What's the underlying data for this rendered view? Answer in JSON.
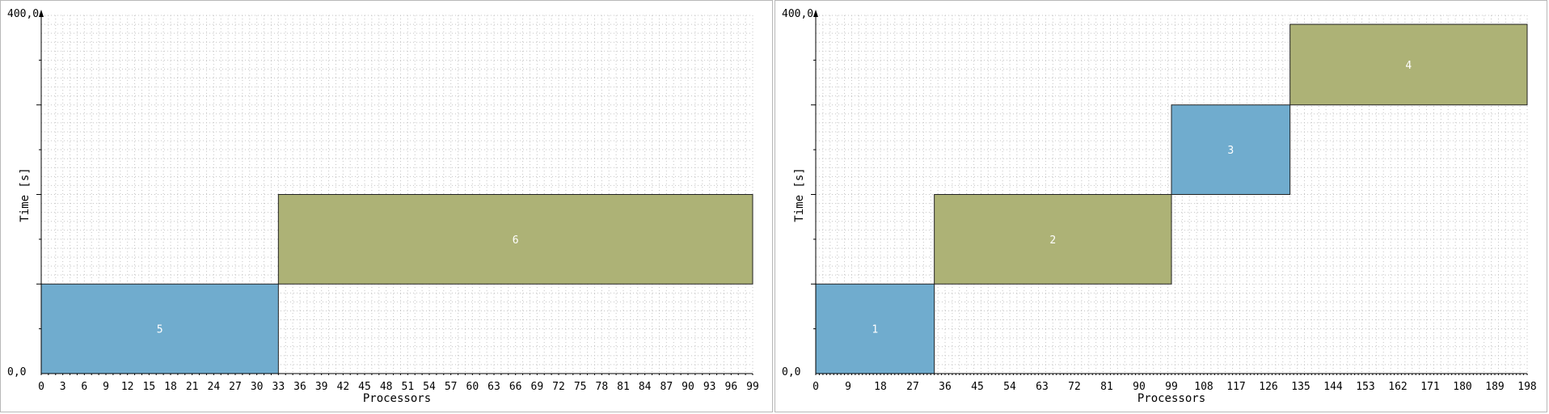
{
  "chart_data": [
    {
      "type": "gantt",
      "xlabel": "Processors",
      "ylabel": "Time [s]",
      "ymax_label": "400,0",
      "ymin_label": "0,0",
      "ylim": [
        0,
        400
      ],
      "xlim": [
        0,
        99
      ],
      "x_ticks": [
        "0",
        "3",
        "6",
        "9",
        "12",
        "15",
        "18",
        "21",
        "24",
        "27",
        "30",
        "33",
        "36",
        "39",
        "42",
        "45",
        "48",
        "51",
        "54",
        "57",
        "60",
        "63",
        "66",
        "69",
        "72",
        "75",
        "78",
        "81",
        "84",
        "87",
        "90",
        "93",
        "96",
        "99"
      ],
      "tasks": [
        {
          "label": "5",
          "x0": 0,
          "x1": 33,
          "t0": 0,
          "t1": 100,
          "color": "#70acce"
        },
        {
          "label": "6",
          "x0": 33,
          "x1": 99,
          "t0": 100,
          "t1": 200,
          "color": "#adb276"
        }
      ]
    },
    {
      "type": "gantt",
      "xlabel": "Processors",
      "ylabel": "Time [s]",
      "ymax_label": "400,0",
      "ymin_label": "0,0",
      "ylim": [
        0,
        400
      ],
      "xlim": [
        0,
        198
      ],
      "x_ticks": [
        "0",
        "9",
        "18",
        "27",
        "36",
        "45",
        "54",
        "63",
        "72",
        "81",
        "90",
        "99",
        "108",
        "117",
        "126",
        "135",
        "144",
        "153",
        "162",
        "171",
        "180",
        "189",
        "198"
      ],
      "tasks": [
        {
          "label": "1",
          "x0": 0,
          "x1": 33,
          "t0": 0,
          "t1": 100,
          "color": "#70acce"
        },
        {
          "label": "2",
          "x0": 33,
          "x1": 99,
          "t0": 100,
          "t1": 200,
          "color": "#adb276"
        },
        {
          "label": "3",
          "x0": 99,
          "x1": 132,
          "t0": 200,
          "t1": 300,
          "color": "#70acce"
        },
        {
          "label": "4",
          "x0": 132,
          "x1": 198,
          "t0": 300,
          "t1": 390,
          "color": "#adb276"
        }
      ]
    }
  ]
}
